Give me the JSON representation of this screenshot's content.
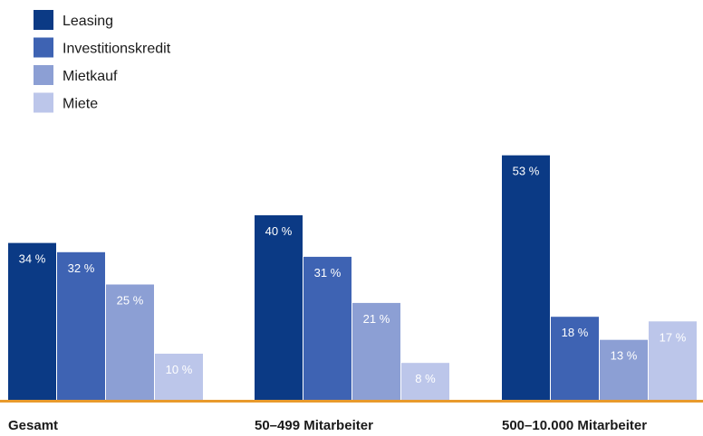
{
  "chart_data": {
    "type": "bar",
    "categories": [
      "Gesamt",
      "50–499 Mitarbeiter",
      "500–10.000 Mitarbeiter"
    ],
    "series": [
      {
        "name": "Leasing",
        "values": [
          34,
          40,
          53
        ],
        "labels": [
          "34 %",
          "40 %",
          "53 %"
        ],
        "color": "#0b3a85"
      },
      {
        "name": "Investitionskredit",
        "values": [
          32,
          31,
          18
        ],
        "labels": [
          "32 %",
          "31 %",
          "18 %"
        ],
        "color": "#3e63b3"
      },
      {
        "name": "Mietkauf",
        "values": [
          25,
          21,
          13
        ],
        "labels": [
          "25 %",
          "21 %",
          "13 %"
        ],
        "color": "#8c9fd4"
      },
      {
        "name": "Miete",
        "values": [
          10,
          8,
          17
        ],
        "labels": [
          "10 %",
          "8 %",
          "17 %"
        ],
        "color": "#bcc6ea"
      }
    ],
    "title": "",
    "xlabel": "",
    "ylabel": "",
    "ylim": [
      0,
      60
    ],
    "legend_position": "top-left",
    "grid": false,
    "baseline_color": "#e89a2c"
  }
}
